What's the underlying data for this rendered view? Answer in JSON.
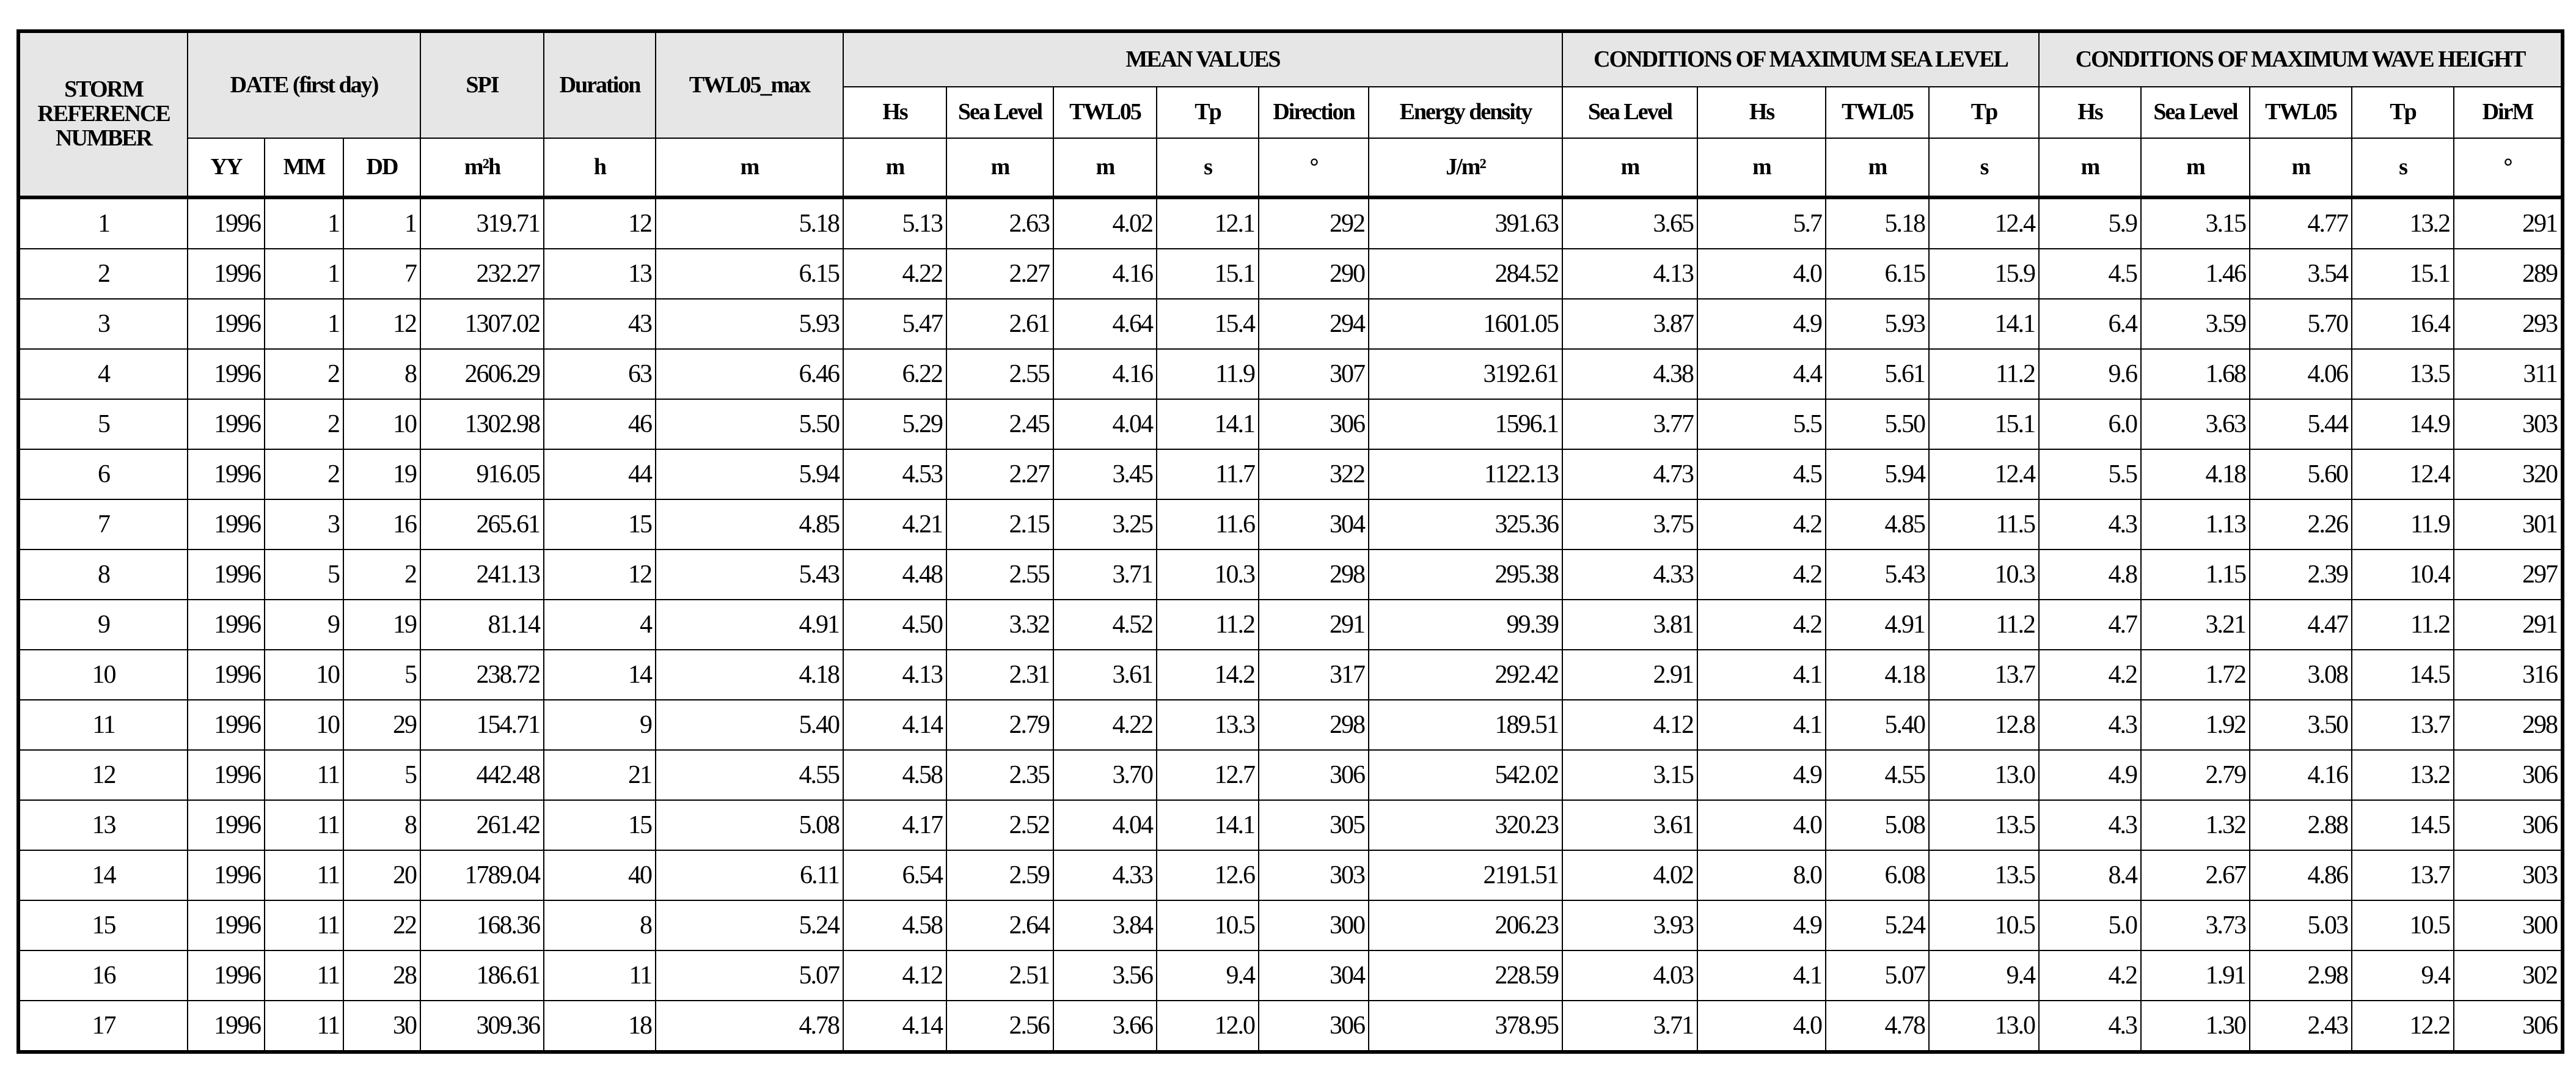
{
  "table": {
    "header_row1": [
      "STORM REFERENCE NUMBER",
      "DATE (first day)",
      "SPI",
      "Duration",
      "TWL05_max",
      "MEAN VALUES",
      "CONDITIONS OF MAXIMUM SEA LEVEL",
      "CONDITIONS OF MAXIMUM WAVE HEIGHT"
    ],
    "header_row2": [
      "Hs",
      "Sea Level",
      "TWL05",
      "Tp",
      "Direction",
      "Energy density",
      "Sea Level",
      "Hs",
      "TWL05",
      "Tp",
      "Hs",
      "Sea Level",
      "TWL05",
      "Tp",
      "DirM"
    ],
    "units": [
      "YY",
      "MM",
      "DD",
      "m²h",
      "h",
      "m",
      "m",
      "m",
      "m",
      "s",
      "°",
      "J/m²",
      "m",
      "m",
      "m",
      "s",
      "m",
      "m",
      "m",
      "s",
      "°"
    ],
    "rows": [
      [
        "1",
        "1996",
        "1",
        "1",
        "319.71",
        "12",
        "5.18",
        "5.13",
        "2.63",
        "4.02",
        "12.1",
        "292",
        "391.63",
        "3.65",
        "5.7",
        "5.18",
        "12.4",
        "5.9",
        "3.15",
        "4.77",
        "13.2",
        "291"
      ],
      [
        "2",
        "1996",
        "1",
        "7",
        "232.27",
        "13",
        "6.15",
        "4.22",
        "2.27",
        "4.16",
        "15.1",
        "290",
        "284.52",
        "4.13",
        "4.0",
        "6.15",
        "15.9",
        "4.5",
        "1.46",
        "3.54",
        "15.1",
        "289"
      ],
      [
        "3",
        "1996",
        "1",
        "12",
        "1307.02",
        "43",
        "5.93",
        "5.47",
        "2.61",
        "4.64",
        "15.4",
        "294",
        "1601.05",
        "3.87",
        "4.9",
        "5.93",
        "14.1",
        "6.4",
        "3.59",
        "5.70",
        "16.4",
        "293"
      ],
      [
        "4",
        "1996",
        "2",
        "8",
        "2606.29",
        "63",
        "6.46",
        "6.22",
        "2.55",
        "4.16",
        "11.9",
        "307",
        "3192.61",
        "4.38",
        "4.4",
        "5.61",
        "11.2",
        "9.6",
        "1.68",
        "4.06",
        "13.5",
        "311"
      ],
      [
        "5",
        "1996",
        "2",
        "10",
        "1302.98",
        "46",
        "5.50",
        "5.29",
        "2.45",
        "4.04",
        "14.1",
        "306",
        "1596.1",
        "3.77",
        "5.5",
        "5.50",
        "15.1",
        "6.0",
        "3.63",
        "5.44",
        "14.9",
        "303"
      ],
      [
        "6",
        "1996",
        "2",
        "19",
        "916.05",
        "44",
        "5.94",
        "4.53",
        "2.27",
        "3.45",
        "11.7",
        "322",
        "1122.13",
        "4.73",
        "4.5",
        "5.94",
        "12.4",
        "5.5",
        "4.18",
        "5.60",
        "12.4",
        "320"
      ],
      [
        "7",
        "1996",
        "3",
        "16",
        "265.61",
        "15",
        "4.85",
        "4.21",
        "2.15",
        "3.25",
        "11.6",
        "304",
        "325.36",
        "3.75",
        "4.2",
        "4.85",
        "11.5",
        "4.3",
        "1.13",
        "2.26",
        "11.9",
        "301"
      ],
      [
        "8",
        "1996",
        "5",
        "2",
        "241.13",
        "12",
        "5.43",
        "4.48",
        "2.55",
        "3.71",
        "10.3",
        "298",
        "295.38",
        "4.33",
        "4.2",
        "5.43",
        "10.3",
        "4.8",
        "1.15",
        "2.39",
        "10.4",
        "297"
      ],
      [
        "9",
        "1996",
        "9",
        "19",
        "81.14",
        "4",
        "4.91",
        "4.50",
        "3.32",
        "4.52",
        "11.2",
        "291",
        "99.39",
        "3.81",
        "4.2",
        "4.91",
        "11.2",
        "4.7",
        "3.21",
        "4.47",
        "11.2",
        "291"
      ],
      [
        "10",
        "1996",
        "10",
        "5",
        "238.72",
        "14",
        "4.18",
        "4.13",
        "2.31",
        "3.61",
        "14.2",
        "317",
        "292.42",
        "2.91",
        "4.1",
        "4.18",
        "13.7",
        "4.2",
        "1.72",
        "3.08",
        "14.5",
        "316"
      ],
      [
        "11",
        "1996",
        "10",
        "29",
        "154.71",
        "9",
        "5.40",
        "4.14",
        "2.79",
        "4.22",
        "13.3",
        "298",
        "189.51",
        "4.12",
        "4.1",
        "5.40",
        "12.8",
        "4.3",
        "1.92",
        "3.50",
        "13.7",
        "298"
      ],
      [
        "12",
        "1996",
        "11",
        "5",
        "442.48",
        "21",
        "4.55",
        "4.58",
        "2.35",
        "3.70",
        "12.7",
        "306",
        "542.02",
        "3.15",
        "4.9",
        "4.55",
        "13.0",
        "4.9",
        "2.79",
        "4.16",
        "13.2",
        "306"
      ],
      [
        "13",
        "1996",
        "11",
        "8",
        "261.42",
        "15",
        "5.08",
        "4.17",
        "2.52",
        "4.04",
        "14.1",
        "305",
        "320.23",
        "3.61",
        "4.0",
        "5.08",
        "13.5",
        "4.3",
        "1.32",
        "2.88",
        "14.5",
        "306"
      ],
      [
        "14",
        "1996",
        "11",
        "20",
        "1789.04",
        "40",
        "6.11",
        "6.54",
        "2.59",
        "4.33",
        "12.6",
        "303",
        "2191.51",
        "4.02",
        "8.0",
        "6.08",
        "13.5",
        "8.4",
        "2.67",
        "4.86",
        "13.7",
        "303"
      ],
      [
        "15",
        "1996",
        "11",
        "22",
        "168.36",
        "8",
        "5.24",
        "4.58",
        "2.64",
        "3.84",
        "10.5",
        "300",
        "206.23",
        "3.93",
        "4.9",
        "5.24",
        "10.5",
        "5.0",
        "3.73",
        "5.03",
        "10.5",
        "300"
      ],
      [
        "16",
        "1996",
        "11",
        "28",
        "186.61",
        "11",
        "5.07",
        "4.12",
        "2.51",
        "3.56",
        "9.4",
        "304",
        "228.59",
        "4.03",
        "4.1",
        "5.07",
        "9.4",
        "4.2",
        "1.91",
        "2.98",
        "9.4",
        "302"
      ],
      [
        "17",
        "1996",
        "11",
        "30",
        "309.36",
        "18",
        "4.78",
        "4.14",
        "2.56",
        "3.66",
        "12.0",
        "306",
        "378.95",
        "3.71",
        "4.0",
        "4.78",
        "13.0",
        "4.3",
        "1.30",
        "2.43",
        "12.2",
        "306"
      ]
    ]
  }
}
